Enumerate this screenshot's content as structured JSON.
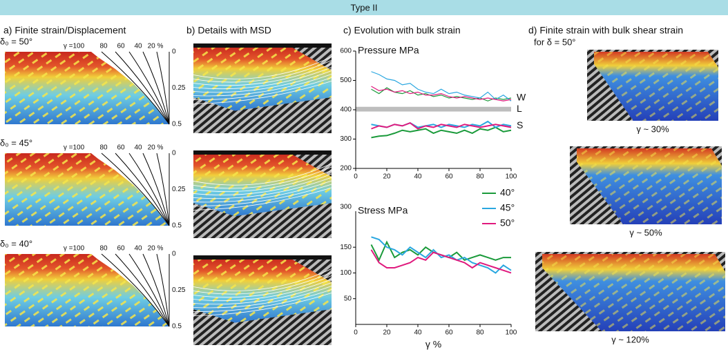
{
  "header": {
    "title": "Type II"
  },
  "panels": {
    "a": {
      "title": "a) Finite strain/Displacement",
      "rows": [
        "δ₀ = 50°",
        "δ₀ = 45°",
        "δ₀ = 40°"
      ],
      "gamma_labels": [
        "γ =100",
        "80",
        "60",
        "40",
        "20 %"
      ],
      "depth_labels": [
        "0",
        "0.25",
        "0.5"
      ]
    },
    "b": {
      "title": "b) Details with MSD"
    },
    "c": {
      "title": "c) Evolution with bulk strain"
    },
    "d": {
      "title": "d)  Finite strain with  bulk shear strain",
      "subtitle": "for δ = 50°",
      "captions": [
        "γ ~ 30%",
        "γ ~ 50%",
        "γ ~ 120%"
      ]
    }
  },
  "chart_data": [
    {
      "type": "line",
      "title": "Pressure MPa",
      "x": [
        10,
        15,
        20,
        25,
        30,
        35,
        40,
        45,
        50,
        55,
        60,
        65,
        70,
        75,
        80,
        85,
        90,
        95,
        100
      ],
      "xlim": [
        0,
        100
      ],
      "xticks": [
        0,
        20,
        40,
        60,
        80,
        100
      ],
      "ylim": [
        200,
        600
      ],
      "yticks": [
        200,
        300,
        400,
        500,
        600
      ],
      "band": [
        394,
        410
      ],
      "annotations": [
        {
          "text": "W",
          "y": 440
        },
        {
          "text": "L",
          "y": 402
        },
        {
          "text": "S",
          "y": 345
        }
      ],
      "series": [
        {
          "name": "40°",
          "color": "#1a9a3a",
          "values": [
            470,
            455,
            475,
            460,
            455,
            465,
            450,
            455,
            445,
            450,
            440,
            445,
            440,
            435,
            440,
            430,
            440,
            435,
            440
          ]
        },
        {
          "name": "45°",
          "color": "#2aa7e0",
          "values": [
            530,
            520,
            505,
            500,
            485,
            490,
            470,
            460,
            455,
            470,
            455,
            460,
            450,
            445,
            440,
            460,
            435,
            450,
            430
          ]
        },
        {
          "name": "50°",
          "color": "#e0197d",
          "values": [
            480,
            465,
            470,
            460,
            465,
            455,
            460,
            450,
            450,
            455,
            445,
            440,
            445,
            440,
            435,
            440,
            435,
            430,
            435
          ]
        },
        {
          "name": "40°",
          "color": "#1a9a3a",
          "values": [
            305,
            310,
            312,
            320,
            330,
            325,
            330,
            335,
            320,
            330,
            325,
            320,
            330,
            320,
            335,
            330,
            340,
            325,
            330
          ]
        },
        {
          "name": "45°",
          "color": "#2aa7e0",
          "values": [
            350,
            345,
            340,
            350,
            345,
            355,
            340,
            345,
            350,
            340,
            350,
            345,
            340,
            350,
            345,
            360,
            340,
            350,
            345
          ]
        },
        {
          "name": "50°",
          "color": "#e0197d",
          "values": [
            335,
            345,
            340,
            350,
            345,
            355,
            335,
            345,
            340,
            350,
            345,
            340,
            350,
            345,
            340,
            345,
            350,
            345,
            340
          ]
        }
      ]
    },
    {
      "type": "line",
      "title": "Stress MPa",
      "xlabel": "γ %",
      "legend": "top-right",
      "x": [
        10,
        15,
        20,
        25,
        30,
        35,
        40,
        45,
        50,
        55,
        60,
        65,
        70,
        75,
        80,
        85,
        90,
        95,
        100
      ],
      "xlim": [
        0,
        100
      ],
      "xticks": [
        0,
        20,
        40,
        60,
        80,
        100
      ],
      "ylim": [
        0,
        220
      ],
      "yticks": [
        50,
        100,
        150
      ],
      "annotations": [
        {
          "text": "300",
          "y": 228
        }
      ],
      "series": [
        {
          "name": "40°",
          "color": "#1a9a3a",
          "values": [
            155,
            125,
            160,
            130,
            140,
            145,
            135,
            150,
            140,
            135,
            130,
            140,
            125,
            130,
            135,
            130,
            125,
            130,
            130
          ]
        },
        {
          "name": "45°",
          "color": "#2aa7e0",
          "values": [
            170,
            165,
            150,
            145,
            135,
            150,
            140,
            130,
            145,
            130,
            135,
            125,
            130,
            120,
            115,
            110,
            100,
            115,
            105
          ]
        },
        {
          "name": "50°",
          "color": "#e0197d",
          "values": [
            145,
            120,
            110,
            110,
            115,
            120,
            130,
            125,
            140,
            135,
            130,
            125,
            120,
            110,
            120,
            115,
            110,
            105,
            100
          ]
        }
      ]
    }
  ]
}
